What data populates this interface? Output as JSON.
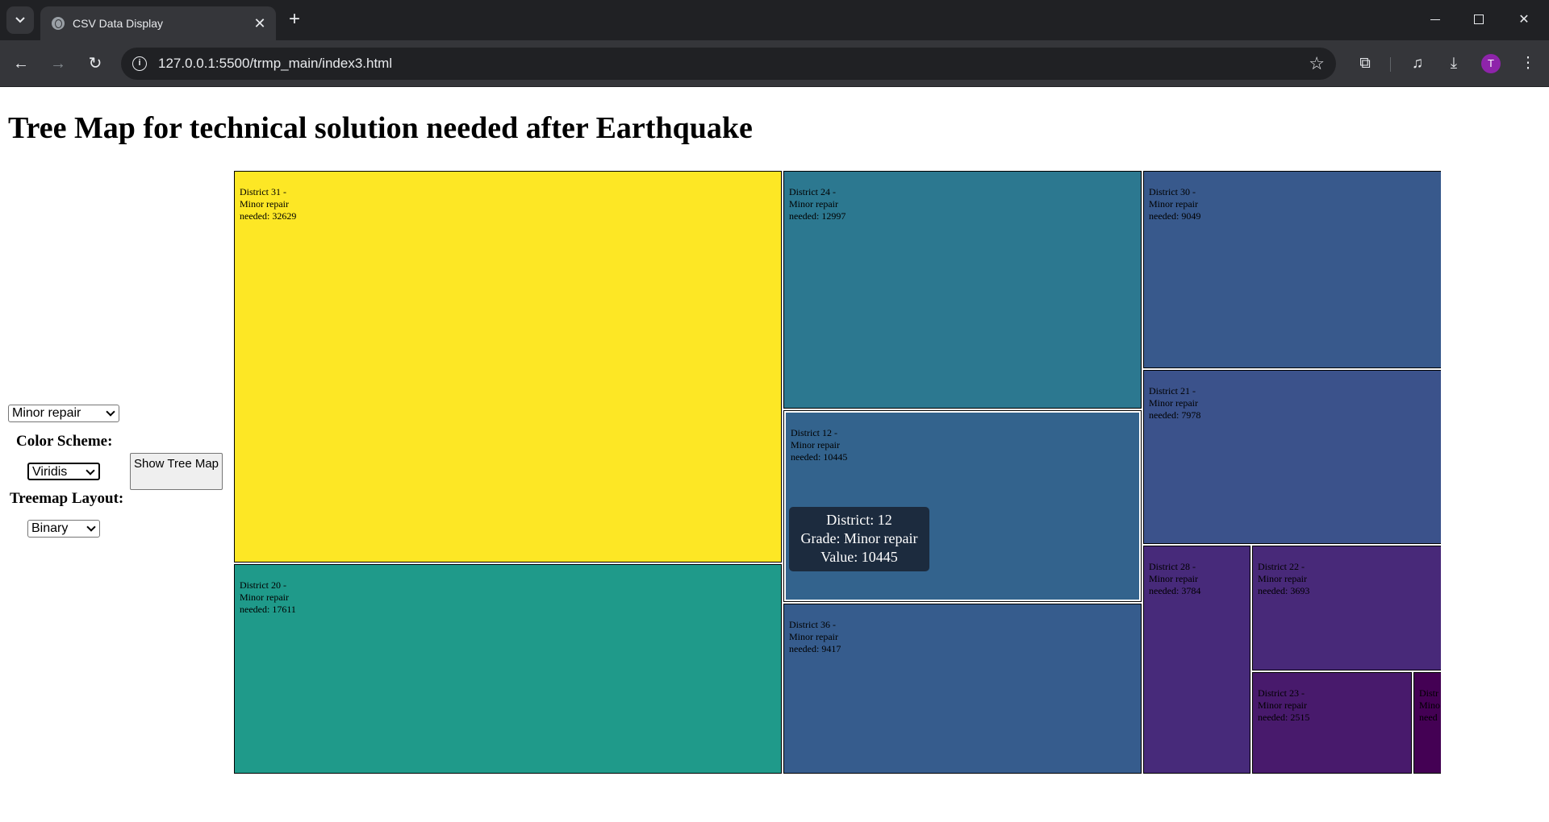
{
  "browser": {
    "tab_title": "CSV Data Display",
    "url": "127.0.0.1:5500/trmp_main/index3.html",
    "avatar_letter": "T"
  },
  "page": {
    "title": "Tree Map for technical solution needed after Earthquake"
  },
  "controls": {
    "grade_select": "Minor repair",
    "color_scheme_label": "Color Scheme:",
    "color_scheme_select": "Viridis",
    "layout_label": "Treemap Layout:",
    "layout_select": "Binary",
    "show_button": "Show Tree Map"
  },
  "chart_data": {
    "type": "treemap",
    "metric": "Minor repair needed",
    "items": [
      {
        "district": "District 31",
        "value": 32629,
        "label": "District 31 -\nMinor repair\nneeded: 32629",
        "color": "#fde725"
      },
      {
        "district": "District 20",
        "value": 17611,
        "label": "District 20 -\nMinor repair\nneeded: 17611",
        "color": "#1f9a8a"
      },
      {
        "district": "District 24",
        "value": 12997,
        "label": "District 24 -\nMinor repair\nneeded: 12997",
        "color": "#2c7890"
      },
      {
        "district": "District 12",
        "value": 10445,
        "label": "District 12 -\nMinor repair\nneeded: 10445",
        "color": "#33638d"
      },
      {
        "district": "District 36",
        "value": 9417,
        "label": "District 36 -\nMinor repair\nneeded: 9417",
        "color": "#365c8d"
      },
      {
        "district": "District 30",
        "value": 9049,
        "label": "District 30 -\nMinor repair\nneeded: 9049",
        "color": "#38598c"
      },
      {
        "district": "District 21",
        "value": 7978,
        "label": "District 21 -\nMinor repair\nneeded: 7978",
        "color": "#3b528b"
      },
      {
        "district": "District 28",
        "value": 3784,
        "label": "District 28 -\nMinor repair\nneeded: 3784",
        "color": "#472a7a"
      },
      {
        "district": "District 22",
        "value": 3693,
        "label": "District 22 -\nMinor repair\nneeded: 3693",
        "color": "#482979"
      },
      {
        "district": "District 23",
        "value": 2515,
        "label": "District 23 -\nMinor repair\nneeded: 2515",
        "color": "#481a6c"
      },
      {
        "district": "Distr",
        "value": null,
        "label": "Distr\nMino\nneed",
        "color": "#440154"
      }
    ]
  },
  "tooltip": {
    "line1": "District: 12",
    "line2": "Grade: Minor repair",
    "line3": "Value: 10445"
  }
}
